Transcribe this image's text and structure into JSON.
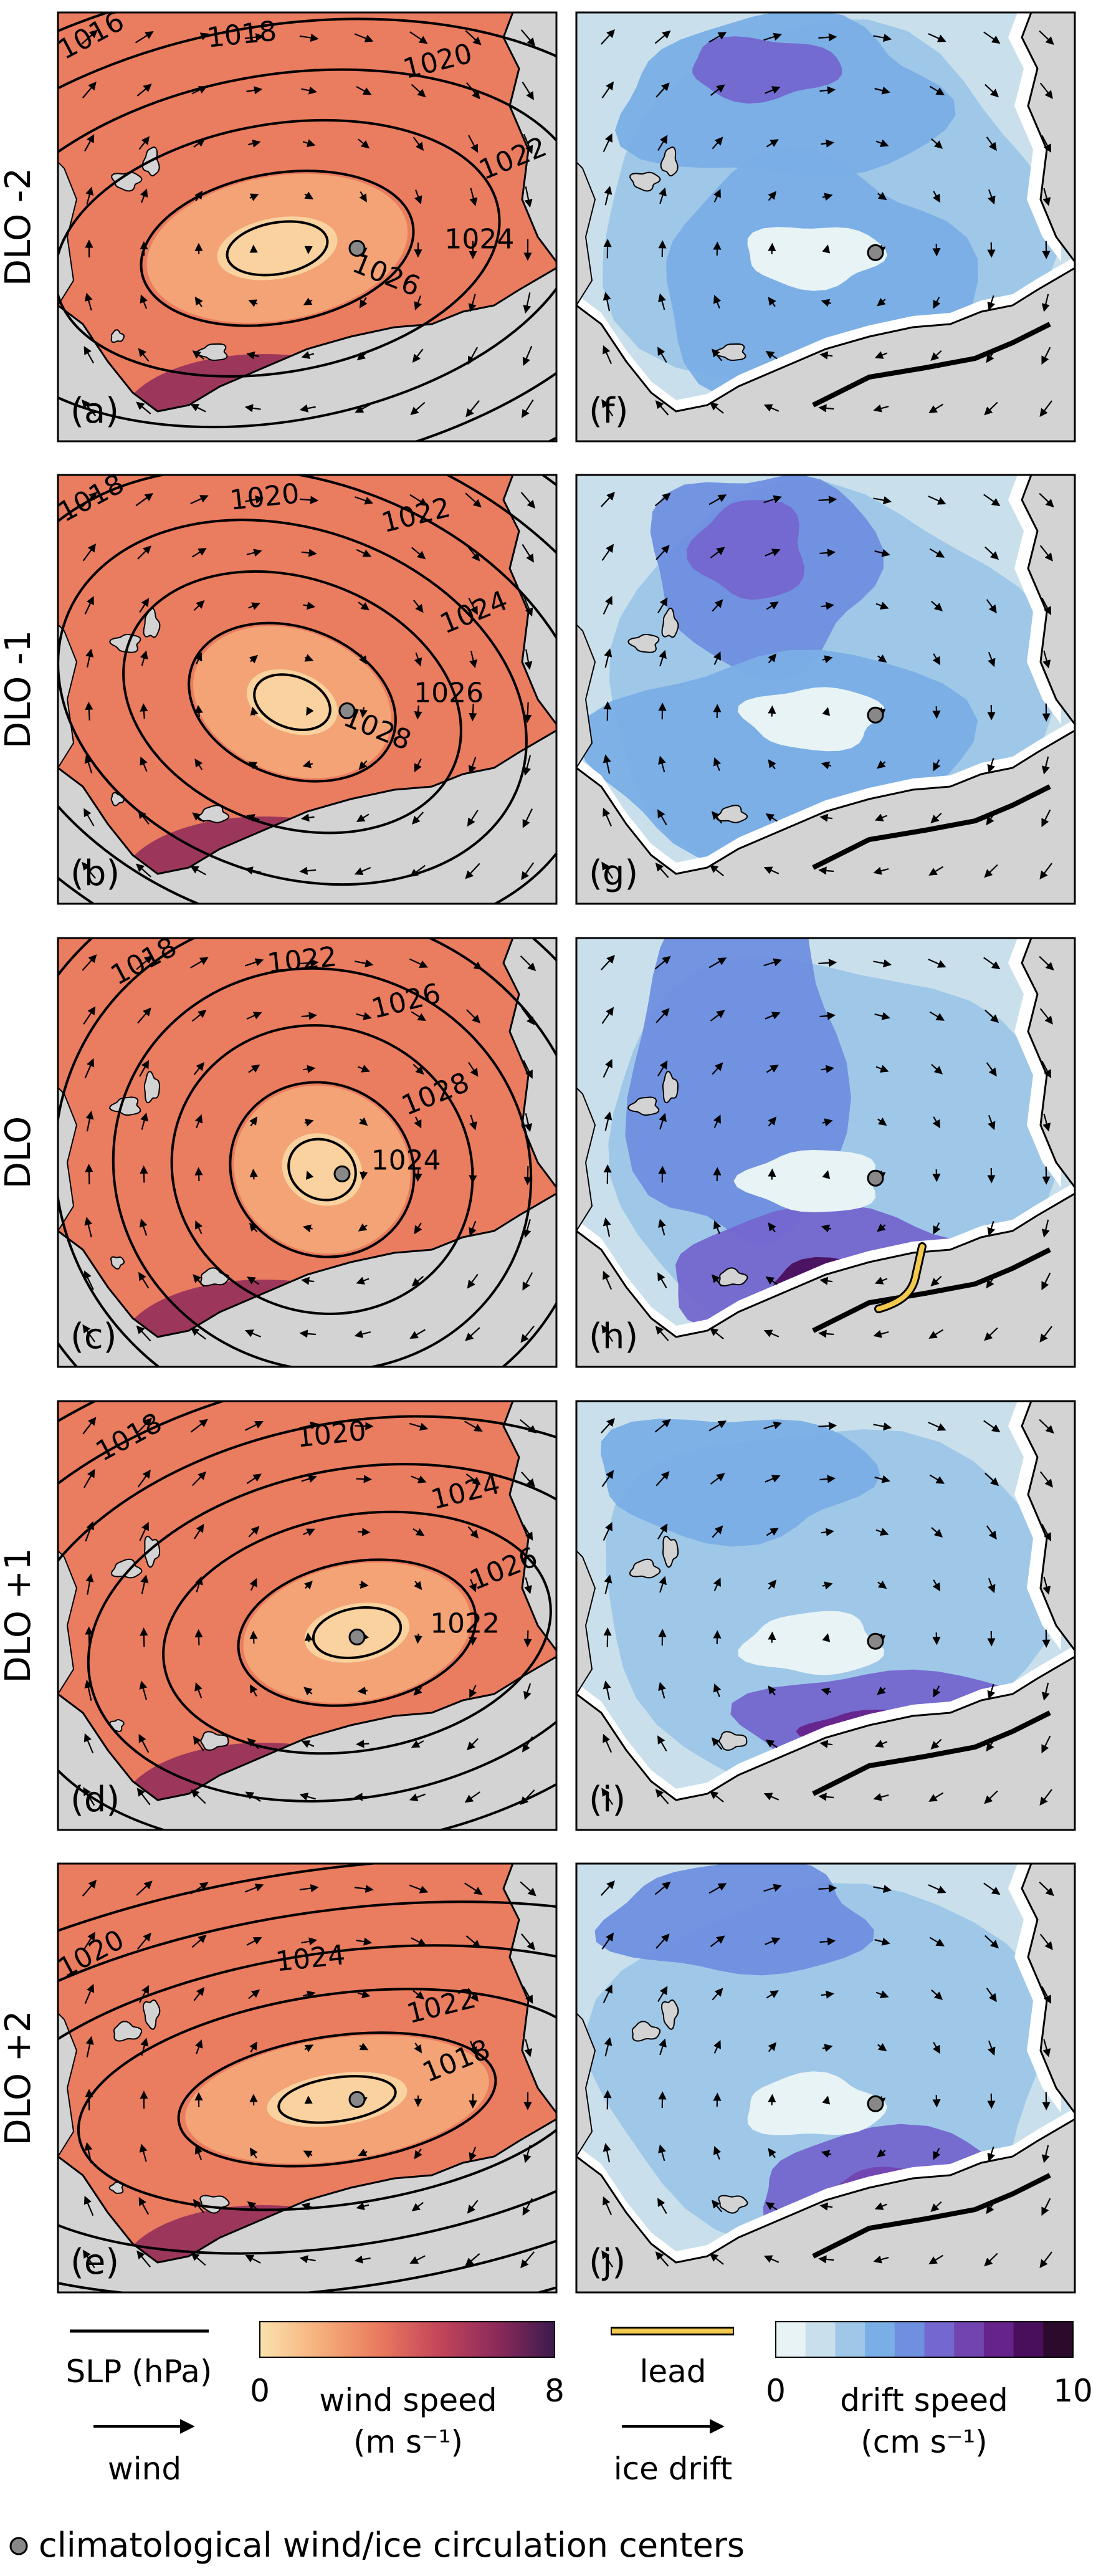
{
  "rows": [
    {
      "row_label": "DLO -2",
      "left_label": "(a)",
      "right_label": "(f)",
      "isobars": [
        {
          "label": "1016"
        },
        {
          "label": "1018"
        },
        {
          "label": "1020"
        },
        {
          "label": "1022"
        },
        {
          "label": "1024"
        },
        {
          "label": "1026"
        }
      ]
    },
    {
      "row_label": "DLO -1",
      "left_label": "(b)",
      "right_label": "(g)",
      "isobars": [
        {
          "label": "1018"
        },
        {
          "label": "1020"
        },
        {
          "label": "1022"
        },
        {
          "label": "1024"
        },
        {
          "label": "1026"
        },
        {
          "label": "1028"
        }
      ]
    },
    {
      "row_label": "DLO",
      "left_label": "(c)",
      "right_label": "(h)",
      "isobars": [
        {
          "label": "1018"
        },
        {
          "label": "1022"
        },
        {
          "label": "1026"
        },
        {
          "label": "1028"
        },
        {
          "label": "1024"
        }
      ]
    },
    {
      "row_label": "DLO +1",
      "left_label": "(d)",
      "right_label": "(i)",
      "isobars": [
        {
          "label": "1018"
        },
        {
          "label": "1020"
        },
        {
          "label": "1024"
        },
        {
          "label": "1026"
        },
        {
          "label": "1022"
        }
      ]
    },
    {
      "row_label": "DLO +2",
      "left_label": "(e)",
      "right_label": "(j)",
      "isobars": [
        {
          "label": "1020"
        },
        {
          "label": "1024"
        },
        {
          "label": "1022"
        },
        {
          "label": "1018"
        }
      ]
    }
  ],
  "legend": {
    "slp_label": "SLP (hPa)",
    "wind_label": "wind",
    "wind_cbar": {
      "min_label": "0",
      "max_label": "8",
      "title_line1": "wind speed",
      "title_line2": "(m s⁻¹)",
      "min": 0,
      "max": 8
    },
    "lead_label": "lead",
    "ice_label": "ice drift",
    "drift_cbar": {
      "min_label": "0",
      "max_label": "10",
      "title_line1": "drift speed",
      "title_line2": "(cm s⁻¹)",
      "min": 0,
      "max": 10,
      "levels": 10
    },
    "center_label": "climatological wind/ice circulation centers"
  },
  "colors": {
    "wind_ramp": [
      "#fbe2ad",
      "#f6b07c",
      "#ea7c5f",
      "#c5475a",
      "#8e2b5b",
      "#3c1a4d"
    ],
    "drift_ramp": [
      "#e8f3f6",
      "#c9e0ec",
      "#9fc8e8",
      "#7aaee6",
      "#6f8fdf",
      "#7467cf",
      "#7244b0",
      "#66238a",
      "#4a0f5c",
      "#2b0a2c"
    ],
    "land": "#d3d3d3",
    "lead": "#f2c94c",
    "center_marker": "#888888"
  }
}
